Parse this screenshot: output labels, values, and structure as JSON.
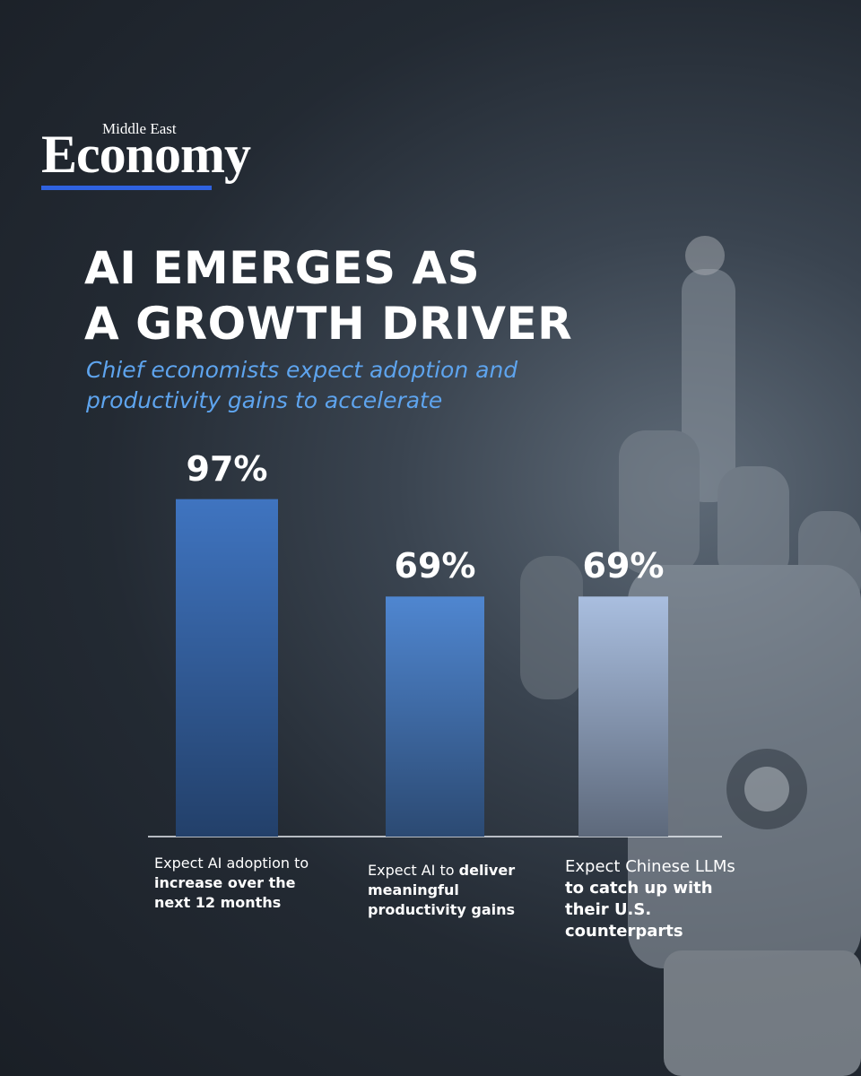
{
  "brand": {
    "top": "Middle East",
    "name": "Economy"
  },
  "chart_data": {
    "type": "bar",
    "title": [
      "AI EMERGES AS",
      "A GROWTH DRIVER"
    ],
    "subtitle": [
      "Chief economists expect adoption and",
      "productivity gains to accelerate"
    ],
    "categories": [
      {
        "text": "Expect AI adoption to",
        "bold": "increase over the next 12 months"
      },
      {
        "text": "Expect AI to",
        "bold": "deliver meaningful productivity gains"
      },
      {
        "text": "Expect Chinese LLMs",
        "bold": "to catch up with their U.S. counterparts"
      }
    ],
    "values": [
      97,
      69,
      69
    ],
    "value_labels": [
      "97%",
      "69%",
      "69%"
    ],
    "colors": [
      "#3f74c0",
      "#4f86d0",
      "#a9bedf"
    ],
    "ylim": [
      0,
      100
    ]
  }
}
